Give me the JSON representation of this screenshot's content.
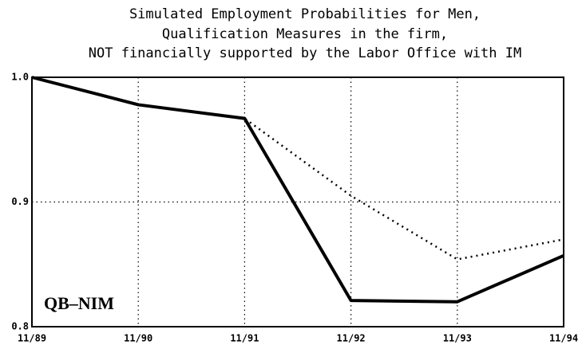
{
  "chart_data": {
    "type": "line",
    "title": [
      "Simulated Employment Probabilities for Men,",
      "Qualification Measures in the firm,",
      "NOT financially supported by the Labor Office with IM"
    ],
    "annotation": "QB–NIM",
    "categories": [
      "11/89",
      "11/90",
      "11/91",
      "11/92",
      "11/93",
      "11/94"
    ],
    "series": [
      {
        "color": "#000000",
        "style": "dotted",
        "values": [
          1.0,
          0.978,
          0.967,
          0.905,
          0.854,
          0.87
        ]
      },
      {
        "color": "#000000",
        "style": "solid",
        "values": [
          1.0,
          0.978,
          0.967,
          0.821,
          0.82,
          0.857
        ]
      }
    ],
    "ylim": [
      0.8,
      1.0
    ],
    "yticks": [
      0.8,
      0.9,
      {
        "value": 1.0,
        "label": "1.0"
      }
    ],
    "grid": true
  }
}
